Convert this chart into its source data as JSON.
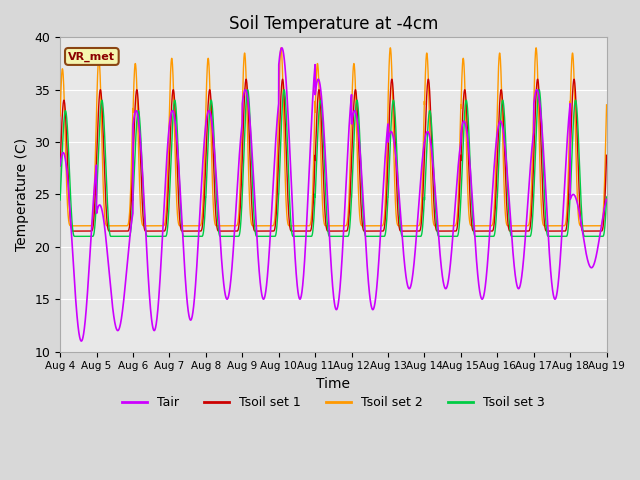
{
  "title": "Soil Temperature at -4cm",
  "xlabel": "Time",
  "ylabel": "Temperature (C)",
  "ylim": [
    10,
    40
  ],
  "background_color": "#d8d8d8",
  "plot_bg_color": "#e8e8e8",
  "colors": {
    "Tair": "#cc00ff",
    "Tsoil1": "#cc0000",
    "Tsoil2": "#ff9900",
    "Tsoil3": "#00cc44"
  },
  "xtick_labels": [
    "Aug 4",
    "Aug 5",
    "Aug 6",
    "Aug 7",
    "Aug 8",
    "Aug 9",
    "Aug 10",
    "Aug 11",
    "Aug 12",
    "Aug 13",
    "Aug 14",
    "Aug 15",
    "Aug 16",
    "Aug 17",
    "Aug 18",
    "Aug 19"
  ],
  "ytick_labels": [
    10,
    15,
    20,
    25,
    30,
    35,
    40
  ],
  "legend_label": "VR_met",
  "n_days": 15,
  "figsize": [
    6.4,
    4.8
  ],
  "dpi": 100
}
